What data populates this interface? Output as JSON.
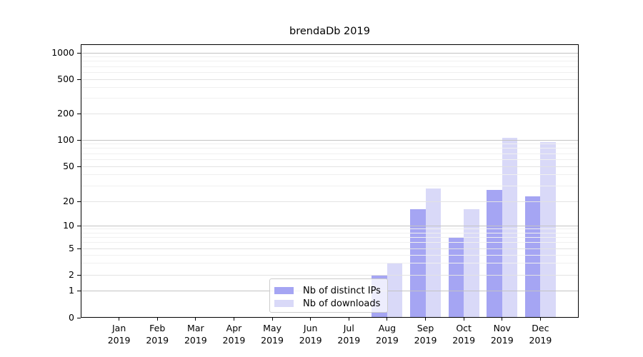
{
  "title": "brendaDb 2019",
  "legend": {
    "items": [
      {
        "label": "Nb of distinct IPs",
        "color": "#a5a5f3"
      },
      {
        "label": "Nb of downloads",
        "color": "#d9d9f8"
      }
    ]
  },
  "chart_data": {
    "type": "bar",
    "title": "brendaDb 2019",
    "categories": [
      "Jan",
      "Feb",
      "Mar",
      "Apr",
      "May",
      "Jun",
      "Jul",
      "Aug",
      "Sep",
      "Oct",
      "Nov",
      "Dec"
    ],
    "year_label": "2019",
    "series": [
      {
        "name": "Nb of distinct IPs",
        "color": "#a5a5f3",
        "values": [
          0,
          0,
          0,
          0,
          0,
          0,
          0,
          2,
          16,
          7,
          27,
          23
        ]
      },
      {
        "name": "Nb of downloads",
        "color": "#d9d9f8",
        "values": [
          0,
          0,
          0,
          0,
          0,
          0,
          0,
          3,
          28,
          16,
          105,
          95
        ]
      }
    ],
    "y_ticks": [
      0,
      1,
      2,
      5,
      10,
      20,
      50,
      100,
      200,
      500,
      1000
    ],
    "y_scale": "symlog",
    "ylim": [
      0,
      1400
    ],
    "grid": true,
    "legend_position": "lower center inside"
  },
  "colors": {
    "ips_bar": "#a5a5f3",
    "downloads_bar": "#d9d9f8",
    "grid_decade": "#c3c3c3",
    "grid_sub": "#e3e3e3",
    "grid_minor": "#f0f0f0",
    "spine": "#000000",
    "background": "#ffffff"
  }
}
